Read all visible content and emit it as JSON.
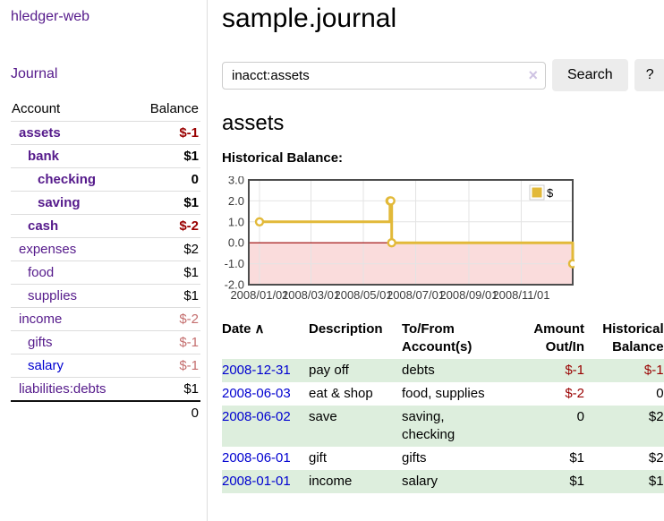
{
  "app": {
    "brand": "hledger-web",
    "nav_journal": "Journal"
  },
  "sidebar": {
    "table": {
      "col_account": "Account",
      "col_balance": "Balance"
    },
    "accounts": [
      {
        "name": "assets",
        "level": 1,
        "bold": true,
        "balance": "$-1",
        "balance_style": "neg-strong"
      },
      {
        "name": "bank",
        "level": 2,
        "bold": true,
        "balance": "$1",
        "balance_style": "pos-strong"
      },
      {
        "name": "checking",
        "level": 3,
        "bold": true,
        "balance": "0",
        "balance_style": "pos-strong"
      },
      {
        "name": "saving",
        "level": 3,
        "bold": true,
        "balance": "$1",
        "balance_style": "pos-strong"
      },
      {
        "name": "cash",
        "level": 2,
        "bold": true,
        "balance": "$-2",
        "balance_style": "neg-strong"
      },
      {
        "name": "expenses",
        "level": 1,
        "bold": false,
        "balance": "$2",
        "balance_style": "pos"
      },
      {
        "name": "food",
        "level": 2,
        "bold": false,
        "balance": "$1",
        "balance_style": "pos"
      },
      {
        "name": "supplies",
        "level": 2,
        "bold": false,
        "balance": "$1",
        "balance_style": "pos"
      },
      {
        "name": "income",
        "level": 1,
        "bold": false,
        "balance": "$-2",
        "balance_style": "neg-soft"
      },
      {
        "name": "gifts",
        "level": 2,
        "bold": false,
        "balance": "$-1",
        "balance_style": "neg-soft"
      },
      {
        "name": "salary",
        "level": 2,
        "bold": false,
        "link_color": "blue",
        "balance": "$-1",
        "balance_style": "neg-soft"
      },
      {
        "name": "liabilities:debts",
        "level": 1,
        "bold": false,
        "balance": "$1",
        "balance_style": "pos"
      }
    ],
    "total": "0"
  },
  "header": {
    "title": "sample.journal"
  },
  "search": {
    "value": "inacct:assets",
    "clear_icon": "×",
    "button_label": "Search",
    "help_label": "?"
  },
  "account_page": {
    "heading": "assets",
    "chart_label": "Historical Balance:"
  },
  "chart_data": {
    "type": "line",
    "style": "step",
    "title": "Historical Balance",
    "series": [
      {
        "name": "$",
        "color": "#e2b939",
        "marker_fill": "#ffffff",
        "points": [
          [
            "2008-01-01",
            1
          ],
          [
            "2008-06-01",
            2
          ],
          [
            "2008-06-02",
            2
          ],
          [
            "2008-06-03",
            0
          ],
          [
            "2008-12-31",
            -1
          ]
        ]
      }
    ],
    "ylim": [
      -2,
      3
    ],
    "yticks": [
      "3.0",
      "2.0",
      "1.0",
      "0.0",
      "-1.0",
      "-2.0"
    ],
    "xticks": [
      "2008/01/01",
      "2008/03/01",
      "2008/05/01",
      "2008/07/01",
      "2008/09/01",
      "2008/11/01"
    ],
    "legend": {
      "label": "$",
      "position": "top-right"
    },
    "grid": true,
    "grid_color": "#e4e4e4",
    "border_color": "#4d4d4d",
    "zero_line_color": "#990000",
    "negative_region_color": "#fadcdc",
    "tick_label_color": "#3c3c3c"
  },
  "register": {
    "columns": [
      {
        "line1": "Date",
        "sort_icon": "∧"
      },
      {
        "line1": "Description"
      },
      {
        "line1": "To/From",
        "line2": "Account(s)"
      },
      {
        "line1": "Amount",
        "line2": "Out/In",
        "align": "right"
      },
      {
        "line1": "Historical",
        "line2": "Balance",
        "align": "right"
      }
    ],
    "rows": [
      {
        "date": "2008-12-31",
        "description": "pay off",
        "accounts": "debts",
        "amount": "$-1",
        "amount_neg": true,
        "balance": "$-1",
        "balance_neg": true,
        "shaded": true
      },
      {
        "date": "2008-06-03",
        "description": "eat & shop",
        "accounts": "food, supplies",
        "amount": "$-2",
        "amount_neg": true,
        "balance": "0",
        "balance_neg": false,
        "shaded": false
      },
      {
        "date": "2008-06-02",
        "description": "save",
        "accounts": "saving, checking",
        "amount": "0",
        "amount_neg": false,
        "balance": "$2",
        "balance_neg": false,
        "shaded": true
      },
      {
        "date": "2008-06-01",
        "description": "gift",
        "accounts": "gifts",
        "amount": "$1",
        "amount_neg": false,
        "balance": "$2",
        "balance_neg": false,
        "shaded": false
      },
      {
        "date": "2008-01-01",
        "description": "income",
        "accounts": "salary",
        "amount": "$1",
        "amount_neg": false,
        "balance": "$1",
        "balance_neg": false,
        "shaded": true
      }
    ]
  }
}
